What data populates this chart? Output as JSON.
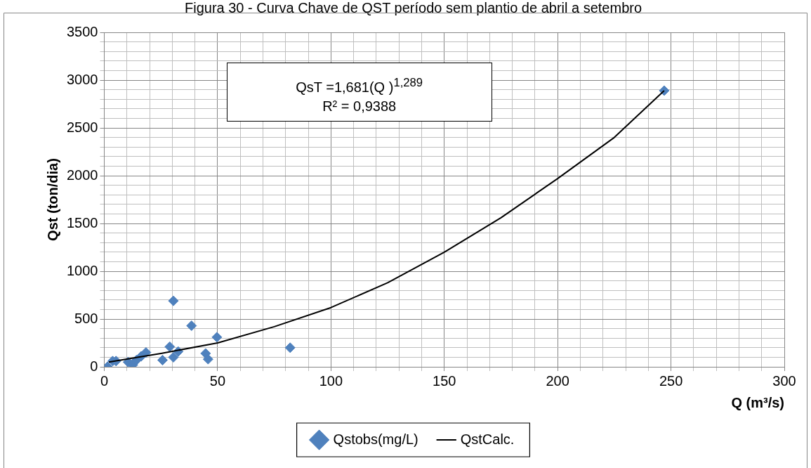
{
  "chart_data": {
    "type": "scatter",
    "title": "Figura 30 - Curva Chave de QST período sem plantio de abril a setembro",
    "xlabel": "Q (m³/s)",
    "ylabel": "Qst (ton/dia)",
    "annotations": [
      "QsT =1,681(Q )$^{1,289}$",
      "R² = 0,9388"
    ],
    "xlim": [
      0,
      300
    ],
    "xticks": [
      0,
      {
        "value": 10,
        "label": null
      },
      {
        "value": 20,
        "label": null
      },
      {
        "value": 30,
        "label": null
      },
      {
        "value": 40,
        "label": null
      },
      50,
      {
        "value": 60,
        "label": null
      },
      {
        "value": 70,
        "label": null
      },
      {
        "value": 80,
        "label": null
      },
      {
        "value": 90,
        "label": null
      },
      100,
      {
        "value": 110,
        "label": null
      },
      {
        "value": 120,
        "label": null
      },
      {
        "value": 130,
        "label": null
      },
      {
        "value": 140,
        "label": null
      },
      150,
      {
        "value": 160,
        "label": null
      },
      {
        "value": 170,
        "label": null
      },
      {
        "value": 180,
        "label": null
      },
      {
        "value": 190,
        "label": null
      },
      200,
      {
        "value": 210,
        "label": null
      },
      {
        "value": 220,
        "label": null
      },
      {
        "value": 230,
        "label": null
      },
      {
        "value": 240,
        "label": null
      },
      250,
      {
        "value": 260,
        "label": null
      },
      {
        "value": 270,
        "label": null
      },
      {
        "value": 280,
        "label": null
      },
      {
        "value": 290,
        "label": null
      },
      300
    ],
    "ylim": [
      0,
      3500
    ],
    "yticks": [
      0,
      {
        "value": 100,
        "label": null
      },
      {
        "value": 200,
        "label": null
      },
      {
        "value": 300,
        "label": null
      },
      {
        "value": 400,
        "label": null
      },
      500,
      {
        "value": 600,
        "label": null
      },
      {
        "value": 700,
        "label": null
      },
      {
        "value": 800,
        "label": null
      },
      {
        "value": 900,
        "label": null
      },
      1000,
      {
        "value": 1100,
        "label": null
      },
      {
        "value": 1200,
        "label": null
      },
      {
        "value": 1300,
        "label": null
      },
      {
        "value": 1400,
        "label": null
      },
      1500,
      {
        "value": 1600,
        "label": null
      },
      {
        "value": 1700,
        "label": null
      },
      {
        "value": 1800,
        "label": null
      },
      {
        "value": 1900,
        "label": null
      },
      2000,
      {
        "value": 2100,
        "label": null
      },
      {
        "value": 2200,
        "label": null
      },
      {
        "value": 2300,
        "label": null
      },
      {
        "value": 2400,
        "label": null
      },
      2500,
      {
        "value": 2600,
        "label": null
      },
      {
        "value": 2700,
        "label": null
      },
      {
        "value": 2800,
        "label": null
      },
      {
        "value": 2900,
        "label": null
      },
      3000,
      {
        "value": 3100,
        "label": null
      },
      {
        "value": 3200,
        "label": null
      },
      {
        "value": 3300,
        "label": null
      },
      {
        "value": 3400,
        "label": null
      },
      3500
    ],
    "grid": true,
    "legend": "bottom",
    "series": [
      {
        "name": "Qstobs(mg/L)",
        "type": "scatter",
        "color": "#4f81bd",
        "marker": "diamond",
        "x": [
          1.4,
          3.7,
          5.2,
          10.5,
          12.6,
          14.2,
          16.3,
          18.4,
          25.7,
          28.9,
          30.5,
          30.5,
          32.6,
          38.5,
          44.7,
          45.8,
          49.7,
          82,
          247
        ],
        "values": [
          0,
          60,
          60,
          50,
          20,
          70,
          110,
          150,
          70,
          210,
          690,
          100,
          160,
          430,
          140,
          80,
          310,
          200,
          2890
        ]
      },
      {
        "name": "QstCalc.",
        "type": "line",
        "color": "#000000",
        "marker": "none",
        "line_style": "solid",
        "x": [
          2,
          25,
          50,
          75,
          100,
          125,
          150,
          175,
          200,
          225,
          247
        ],
        "values": [
          50,
          140,
          250,
          420,
          620,
          880,
          1200,
          1560,
          1970,
          2400,
          2890
        ]
      }
    ]
  }
}
